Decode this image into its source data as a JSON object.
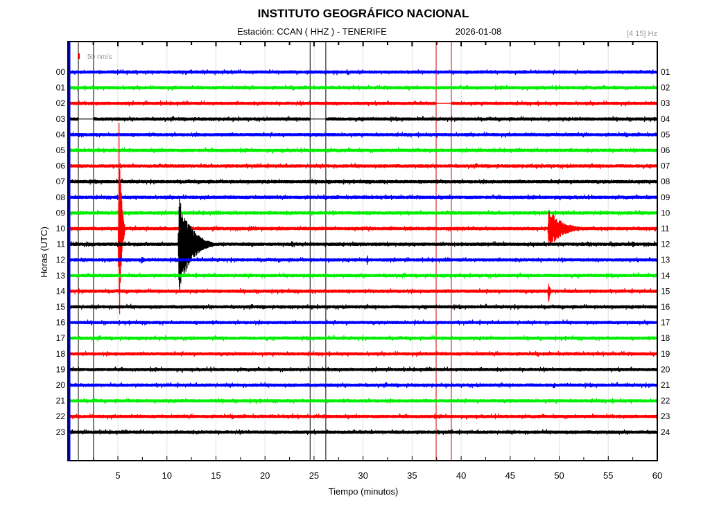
{
  "chart_data": {
    "type": "line",
    "title": "INSTITUTO GEOGRÁFICO NACIONAL",
    "subtitle_station": "Estación:  CCAN ( HHZ ) - TENERIFE",
    "date": "2026-01-08",
    "filter": "[4 15] Hz",
    "scale_label": "50 nm/s",
    "scale_value_nm_s": 50,
    "xlabel": "Tiempo (minutos)",
    "ylabel": "Horas (UTC)",
    "xlim": [
      0,
      60
    ],
    "xticks": [
      "5",
      "10",
      "15",
      "20",
      "25",
      "30",
      "35",
      "40",
      "45",
      "50",
      "55",
      "60"
    ],
    "left_labels": [
      "00",
      "01",
      "02",
      "03",
      "04",
      "05",
      "06",
      "07",
      "08",
      "09",
      "10",
      "11",
      "12",
      "13",
      "14",
      "15",
      "16",
      "17",
      "18",
      "19",
      "20",
      "21",
      "22",
      "23"
    ],
    "right_labels": [
      "01",
      "02",
      "03",
      "04",
      "05",
      "06",
      "07",
      "08",
      "09",
      "10",
      "11",
      "12",
      "13",
      "14",
      "15",
      "16",
      "17",
      "18",
      "19",
      "20",
      "21",
      "22",
      "23",
      "24"
    ],
    "trace_colors": [
      "#0000ff",
      "#00ee00",
      "#ff0000",
      "#000000"
    ],
    "noise_nm_s": 15,
    "gaps": [
      {
        "row": 3,
        "start_min": 0.97,
        "end_min": 2.52
      },
      {
        "row": 3,
        "start_min": 24.6,
        "end_min": 26.2
      },
      {
        "row": 2,
        "start_min": 37.45,
        "end_min": 39.0
      }
    ],
    "marker_lines": [
      {
        "minute": 0.97,
        "color": "#000000"
      },
      {
        "minute": 2.52,
        "color": "#000000"
      },
      {
        "minute": 24.6,
        "color": "#000000"
      },
      {
        "minute": 26.2,
        "color": "#000000"
      },
      {
        "minute": 37.45,
        "color": "#cc0000"
      },
      {
        "minute": 39.0,
        "color": "#cc0000"
      }
    ],
    "events": [
      {
        "row": 10,
        "minute": 5.1,
        "amplitude_nm_s": 1200,
        "duration_min": 0.6
      },
      {
        "row": 11,
        "minute": 11.2,
        "amplitude_nm_s": 480,
        "duration_min": 3.5
      },
      {
        "row": 10,
        "minute": 48.9,
        "amplitude_nm_s": 190,
        "duration_min": 4
      },
      {
        "row": 14,
        "minute": 48.9,
        "amplitude_nm_s": 130,
        "duration_min": 0.4
      },
      {
        "row": 11,
        "minute": 22.7,
        "amplitude_nm_s": 50,
        "duration_min": 0.5
      },
      {
        "row": 12,
        "minute": 30.4,
        "amplitude_nm_s": 60,
        "duration_min": 0.3
      },
      {
        "row": 12,
        "minute": 7.4,
        "amplitude_nm_s": 40,
        "duration_min": 1
      },
      {
        "row": 16,
        "minute": 35.3,
        "amplitude_nm_s": 40,
        "duration_min": 0.3
      },
      {
        "row": 20,
        "minute": 49.5,
        "amplitude_nm_s": 30,
        "duration_min": 0.6
      },
      {
        "row": 23,
        "minute": 30.8,
        "amplitude_nm_s": 35,
        "duration_min": 0.5
      },
      {
        "row": 9,
        "minute": 54.2,
        "amplitude_nm_s": 30,
        "duration_min": 0.6
      },
      {
        "row": 11,
        "minute": 57.5,
        "amplitude_nm_s": 30,
        "duration_min": 1
      },
      {
        "row": 19,
        "minute": 1.0,
        "amplitude_nm_s": 35,
        "duration_min": 0.2
      }
    ]
  }
}
